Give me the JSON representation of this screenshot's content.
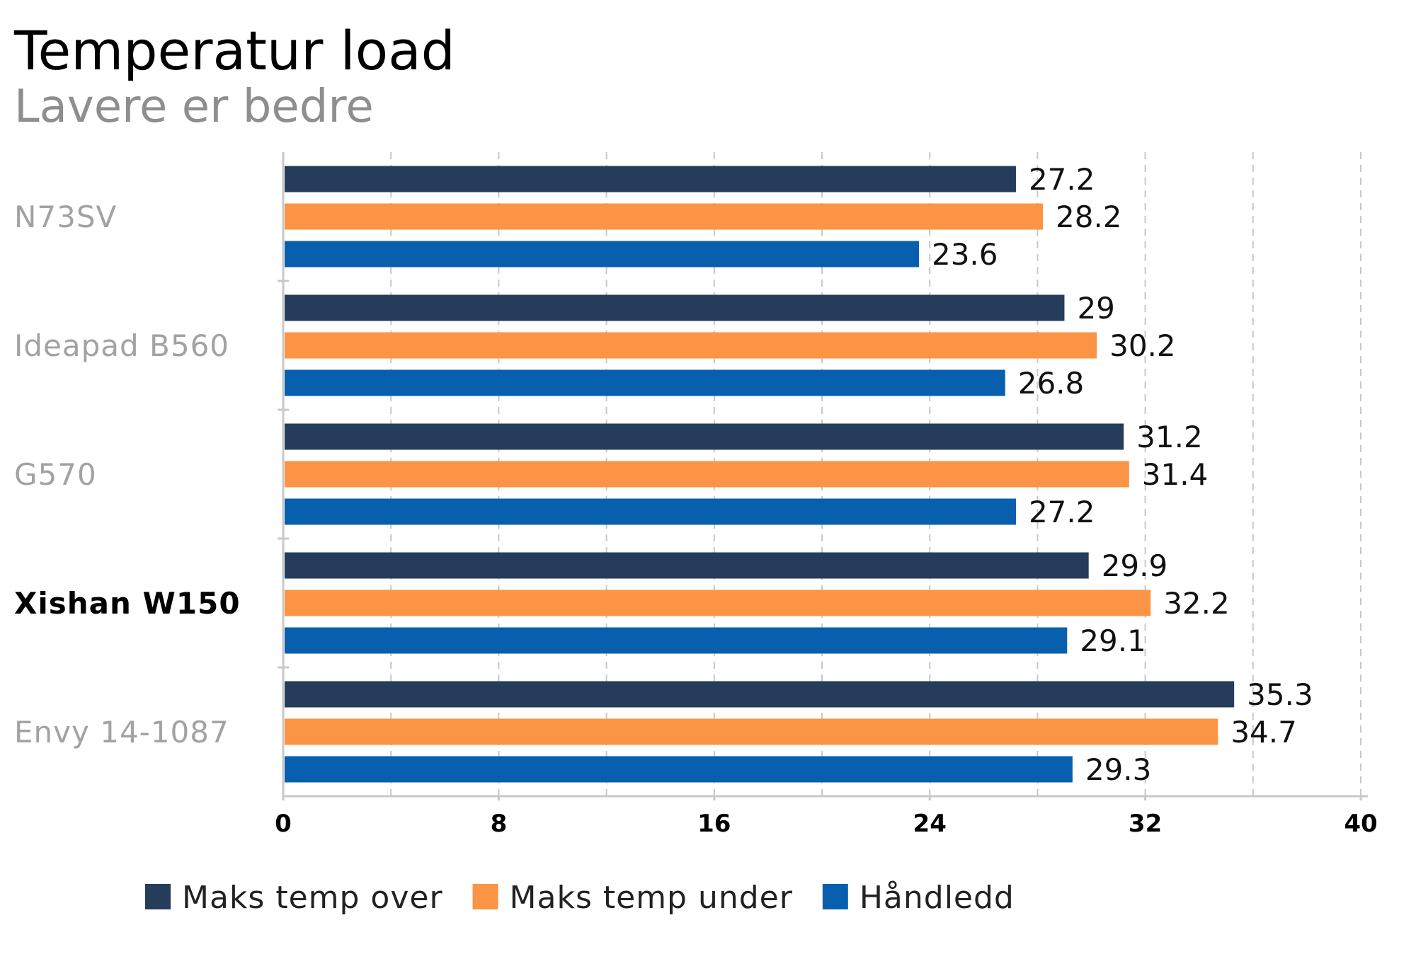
{
  "chart_data": {
    "type": "bar",
    "orientation": "horizontal",
    "title": "Temperatur load",
    "subtitle": "Lavere er bedre",
    "categories": [
      "N73SV",
      "Ideapad B560",
      "G570",
      "Xishan W150",
      "Envy 14-1087"
    ],
    "highlighted_category": "Xishan W150",
    "series": [
      {
        "name": "Maks temp over",
        "color": "#253d5b",
        "values": [
          27.2,
          29,
          31.2,
          29.9,
          35.3
        ]
      },
      {
        "name": "Maks temp under",
        "color": "#fb9444",
        "values": [
          28.2,
          30.2,
          31.4,
          32.2,
          34.7
        ]
      },
      {
        "name": "Håndledd",
        "color": "#075fae",
        "values": [
          23.6,
          26.8,
          27.2,
          29.1,
          29.3
        ]
      }
    ],
    "xlim": [
      0,
      40
    ],
    "ticks": [
      0,
      8,
      16,
      24,
      32,
      40
    ],
    "grid": true,
    "legend_position": "bottom"
  }
}
